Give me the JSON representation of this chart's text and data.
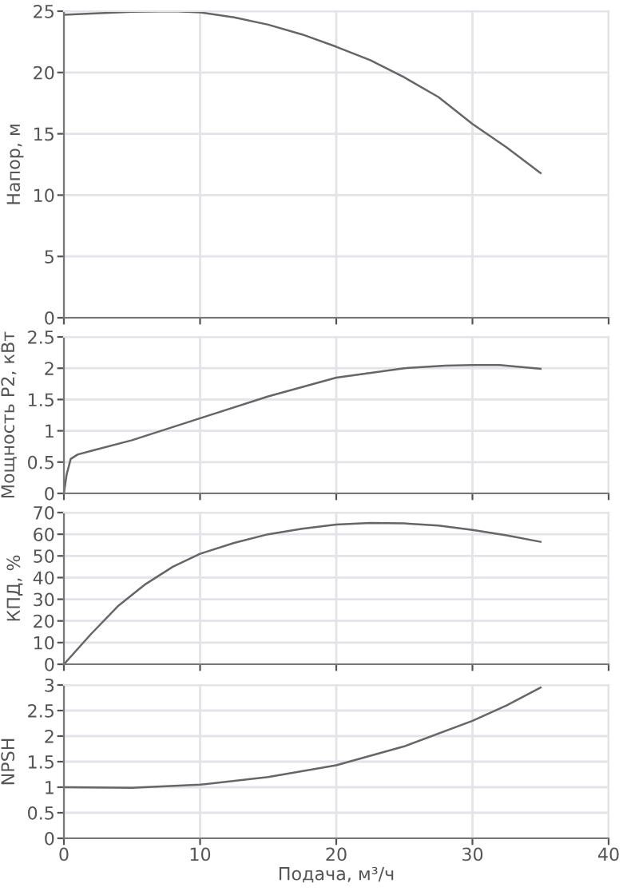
{
  "chart_data": [
    {
      "type": "line",
      "ylabel": "Напор, м",
      "xlim": [
        0,
        40
      ],
      "xticks": [
        0,
        10,
        20,
        30,
        40
      ],
      "ylim": [
        0,
        25
      ],
      "yticks": [
        0,
        5,
        10,
        15,
        20,
        25
      ],
      "grid": true,
      "tick_labels": "y",
      "series": [
        {
          "color": "#666666",
          "x": [
            0,
            2,
            5,
            8,
            10,
            12.5,
            15,
            17.5,
            20,
            22.5,
            25,
            27.5,
            30,
            32.5,
            35
          ],
          "values": [
            24.7,
            24.8,
            24.95,
            25.0,
            24.9,
            24.5,
            23.9,
            23.1,
            22.1,
            21.0,
            19.6,
            18.0,
            15.8,
            13.9,
            11.8
          ]
        }
      ]
    },
    {
      "type": "line",
      "ylabel": "Мощность P2, кВт",
      "xlim": [
        0,
        40
      ],
      "xticks": [
        0,
        10,
        20,
        30,
        40
      ],
      "ylim": [
        0,
        2.5
      ],
      "yticks": [
        0,
        0.5,
        1,
        1.5,
        2,
        2.5
      ],
      "grid": true,
      "tick_labels": "y",
      "series": [
        {
          "color": "#666666",
          "x": [
            0,
            0.2,
            0.5,
            1,
            2,
            5,
            10,
            15,
            20,
            25,
            28,
            30,
            32,
            35
          ],
          "values": [
            0,
            0.3,
            0.55,
            0.62,
            0.68,
            0.85,
            1.2,
            1.55,
            1.85,
            2.0,
            2.04,
            2.05,
            2.05,
            1.99
          ]
        }
      ]
    },
    {
      "type": "line",
      "ylabel": "КПД, %",
      "xlim": [
        0,
        40
      ],
      "xticks": [
        0,
        10,
        20,
        30,
        40
      ],
      "ylim": [
        0,
        70
      ],
      "yticks": [
        0,
        10,
        20,
        30,
        40,
        50,
        60,
        70
      ],
      "grid": true,
      "tick_labels": "y",
      "series": [
        {
          "color": "#666666",
          "x": [
            0,
            2,
            4,
            6,
            8,
            10,
            12.5,
            15,
            17.5,
            20,
            22.5,
            25,
            27.5,
            30,
            32.5,
            35
          ],
          "values": [
            0,
            14,
            27,
            37,
            45,
            51,
            56,
            60,
            62.5,
            64.5,
            65.2,
            65,
            64,
            62,
            59.5,
            56.5
          ]
        }
      ]
    },
    {
      "type": "line",
      "ylabel": "NPSH",
      "xlabel": "Подача, м³/ч",
      "xlim": [
        0,
        40
      ],
      "xticks": [
        0,
        10,
        20,
        30,
        40
      ],
      "ylim": [
        0,
        3
      ],
      "yticks": [
        0,
        0.5,
        1,
        1.5,
        2,
        2.5,
        3
      ],
      "grid": true,
      "series": [
        {
          "color": "#666666",
          "x": [
            0,
            5,
            10,
            15,
            20,
            25,
            30,
            32.5,
            35
          ],
          "values": [
            1.0,
            0.99,
            1.05,
            1.2,
            1.43,
            1.8,
            2.3,
            2.6,
            2.95
          ]
        }
      ]
    }
  ]
}
